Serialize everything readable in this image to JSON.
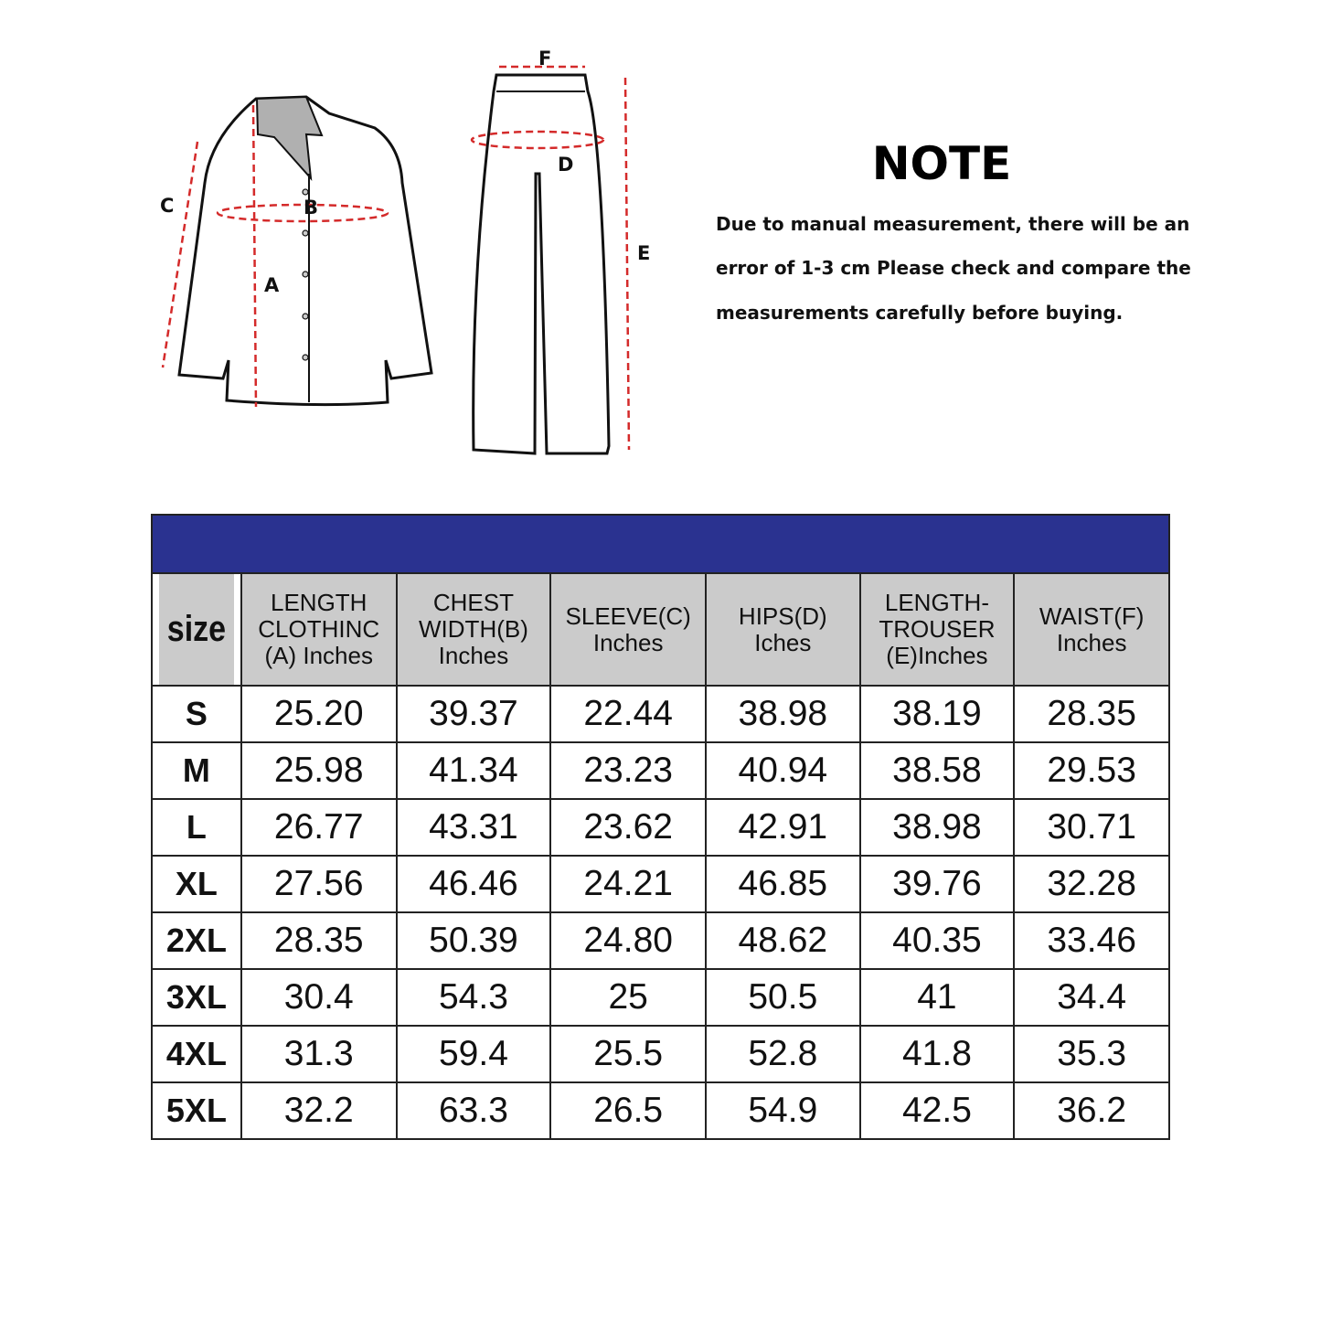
{
  "diagram": {
    "labels": {
      "A": "A",
      "B": "B",
      "C": "C",
      "D": "D",
      "E": "E",
      "F": "F"
    },
    "measure_line_color": "#d42a2a",
    "collar_color": "#b0b0b0"
  },
  "note": {
    "title": "NOTE",
    "lines": [
      "Due to manual measurement, there will be an",
      "error of 1-3 cm Please check and compare the",
      " measurements carefully before buying."
    ]
  },
  "table": {
    "banner_color": "#2a3290",
    "header_bg": "#cbcbcb",
    "columns": [
      [
        "size"
      ],
      [
        "LENGTH",
        "CLOTHINC",
        "(A) Inches"
      ],
      [
        "CHEST",
        "WIDTH(B)",
        "Inches"
      ],
      [
        "SLEEVE(C)",
        "Inches"
      ],
      [
        "HIPS(D)",
        "Iches"
      ],
      [
        "LENGTH-",
        "TROUSER",
        "(E)Inches"
      ],
      [
        "WAIST(F)",
        "Inches"
      ]
    ],
    "rows": [
      [
        "S",
        "25.20",
        "39.37",
        "22.44",
        "38.98",
        "38.19",
        "28.35"
      ],
      [
        "M",
        "25.98",
        "41.34",
        "23.23",
        "40.94",
        "38.58",
        "29.53"
      ],
      [
        "L",
        "26.77",
        "43.31",
        "23.62",
        "42.91",
        "38.98",
        "30.71"
      ],
      [
        "XL",
        "27.56",
        "46.46",
        "24.21",
        "46.85",
        "39.76",
        "32.28"
      ],
      [
        "2XL",
        "28.35",
        "50.39",
        "24.80",
        "48.62",
        "40.35",
        "33.46"
      ],
      [
        "3XL",
        "30.4",
        "54.3",
        "25",
        "50.5",
        "41",
        "34.4"
      ],
      [
        "4XL",
        "31.3",
        "59.4",
        "25.5",
        "52.8",
        "41.8",
        "35.3"
      ],
      [
        "5XL",
        "32.2",
        "63.3",
        "26.5",
        "54.9",
        "42.5",
        "36.2"
      ]
    ]
  }
}
